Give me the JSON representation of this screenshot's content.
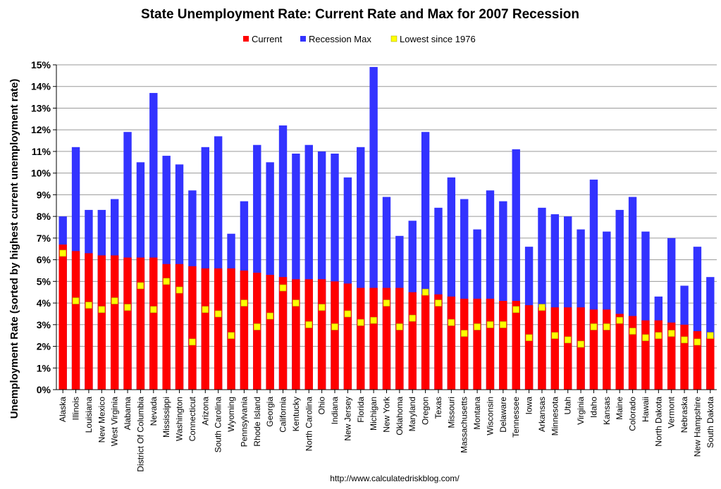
{
  "chart_data": {
    "type": "bar",
    "title": "State Unemployment Rate: Current Rate and Max for 2007 Recession",
    "ylabel": "Unemployment Rate (sorted by highest current unemployment rate)",
    "xlabel": "",
    "source": "http://www.calculatedriskblog.com/",
    "ylim": [
      0,
      15
    ],
    "yticks": [
      "0%",
      "1%",
      "2%",
      "3%",
      "4%",
      "5%",
      "6%",
      "7%",
      "8%",
      "9%",
      "10%",
      "11%",
      "12%",
      "13%",
      "14%",
      "15%"
    ],
    "grid": true,
    "legend_position": "top",
    "colors": {
      "current": "#ff0000",
      "max": "#3333ff",
      "low": "#ffff00"
    },
    "categories": [
      "Alaska",
      "Illinois",
      "Louisiana",
      "New Mexico",
      "West Virginia",
      "Alabama",
      "District Of Columbia",
      "Nevada",
      "Mississippi",
      "Washington",
      "Connecticut",
      "Arizona",
      "South Carolina",
      "Wyoming",
      "Pennsylvania",
      "Rhode Island",
      "Georgia",
      "California",
      "Kentucky",
      "North Carolina",
      "Ohio",
      "Indiana",
      "New Jersey",
      "Florida",
      "Michigan",
      "New York",
      "Oklahoma",
      "Maryland",
      "Oregon",
      "Texas",
      "Missouri",
      "Massachusetts",
      "Montana",
      "Wisconsin",
      "Delaware",
      "Tennessee",
      "Iowa",
      "Arkansas",
      "Minnesota",
      "Utah",
      "Virginia",
      "Idaho",
      "Kansas",
      "Maine",
      "Colorado",
      "Hawaii",
      "North Dakota",
      "Vermont",
      "Nebraska",
      "New Hampshire",
      "South Dakota"
    ],
    "series": [
      {
        "name": "Current",
        "values": [
          6.7,
          6.4,
          6.3,
          6.2,
          6.2,
          6.1,
          6.1,
          6.1,
          5.8,
          5.8,
          5.7,
          5.6,
          5.6,
          5.6,
          5.5,
          5.4,
          5.3,
          5.2,
          5.1,
          5.1,
          5.1,
          5.0,
          4.9,
          4.7,
          4.7,
          4.7,
          4.7,
          4.5,
          4.4,
          4.4,
          4.3,
          4.2,
          4.2,
          4.2,
          4.1,
          4.1,
          3.9,
          3.8,
          3.8,
          3.8,
          3.8,
          3.7,
          3.7,
          3.5,
          3.4,
          3.2,
          3.2,
          3.1,
          3.0,
          2.7,
          2.4
        ]
      },
      {
        "name": "Recession Max",
        "values": [
          8.0,
          11.2,
          8.3,
          8.3,
          8.8,
          11.9,
          10.5,
          13.7,
          10.8,
          10.4,
          9.2,
          11.2,
          11.7,
          7.2,
          8.7,
          11.3,
          10.5,
          12.2,
          10.9,
          11.3,
          11.0,
          10.9,
          9.8,
          11.2,
          14.9,
          8.9,
          7.1,
          7.8,
          11.9,
          8.4,
          9.8,
          8.8,
          7.4,
          9.2,
          8.7,
          11.1,
          6.6,
          8.4,
          8.1,
          8.0,
          7.4,
          9.7,
          7.3,
          8.3,
          8.9,
          7.3,
          4.3,
          7.0,
          4.8,
          6.6,
          5.2
        ]
      },
      {
        "name": "Lowest since 1976",
        "values": [
          6.3,
          4.1,
          3.9,
          3.7,
          4.1,
          3.8,
          4.8,
          3.7,
          5.0,
          4.6,
          2.2,
          3.7,
          3.5,
          2.5,
          4.0,
          2.9,
          3.4,
          4.7,
          4.0,
          3.0,
          3.8,
          2.9,
          3.5,
          3.1,
          3.2,
          4.0,
          2.9,
          3.3,
          4.5,
          4.0,
          3.1,
          2.6,
          2.9,
          3.0,
          3.0,
          3.7,
          2.4,
          3.8,
          2.5,
          2.3,
          2.1,
          2.9,
          2.9,
          3.2,
          2.7,
          2.4,
          2.5,
          2.6,
          2.3,
          2.2,
          2.5
        ]
      }
    ]
  }
}
